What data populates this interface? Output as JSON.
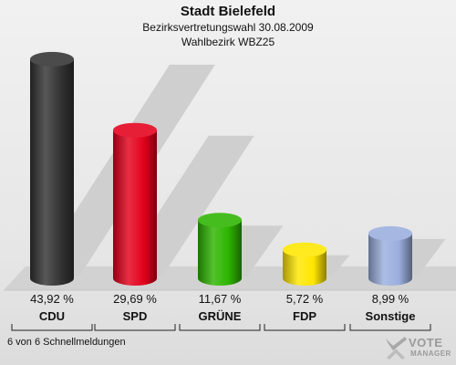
{
  "header": {
    "title": "Stadt Bielefeld",
    "subtitle1": "Bezirksvertretungswahl 30.08.2009",
    "subtitle2": "Wahlbezirk WBZ25"
  },
  "footer": {
    "note": "6 von 6 Schnellmeldungen"
  },
  "logo": {
    "line1": "VOTE",
    "line2": "MANAGER"
  },
  "chart_data": {
    "type": "bar",
    "title": "Stadt Bielefeld",
    "categories": [
      "CDU",
      "SPD",
      "GRÜNE",
      "FDP",
      "Sonstige"
    ],
    "values": [
      43.92,
      29.69,
      11.67,
      5.72,
      8.99
    ],
    "value_labels": [
      "43,92 %",
      "29,69 %",
      "11,67 %",
      "5,72 %",
      "8,99 %"
    ],
    "colors": [
      "#333333",
      "#e3001b",
      "#2db400",
      "#ffe600",
      "#9aaede"
    ],
    "ylim": [
      0,
      45
    ],
    "grid": false,
    "legend": "none"
  }
}
